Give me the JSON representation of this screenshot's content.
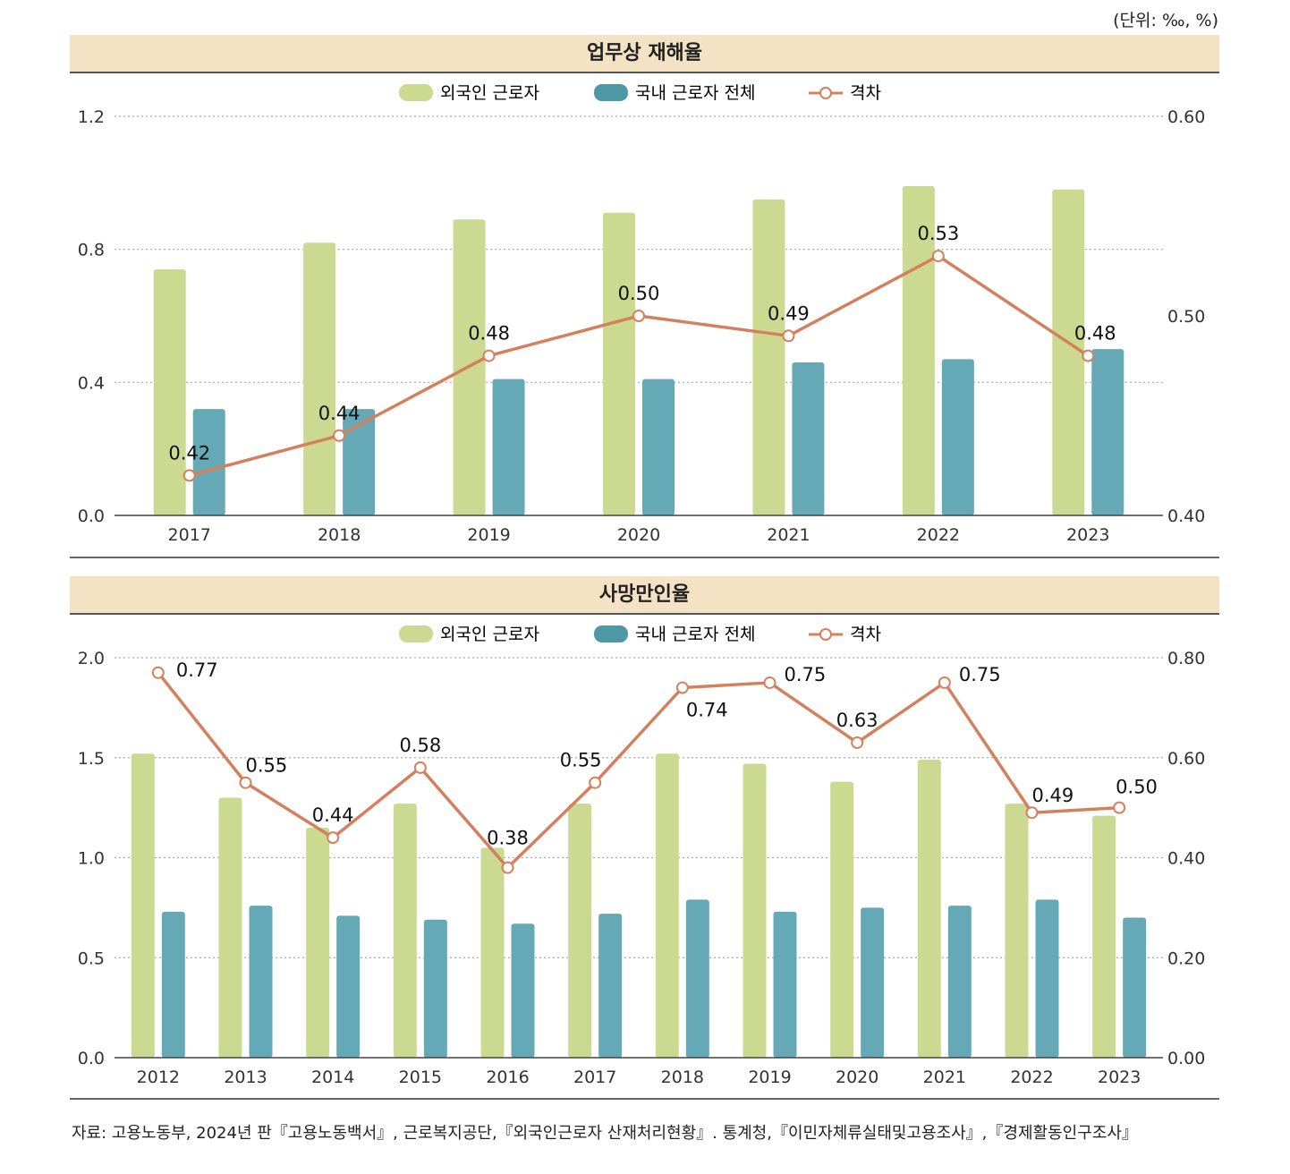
{
  "unit_label": "(단위: ‰, %)",
  "source": "자료: 고용노동부, 2024년 판『고용노동백서』, 근로복지공단,『외국인근로자 산재처리현황』. 통계청,『이민자체류실태및고용조사』,『경제활동인구조사』",
  "colors": {
    "foreign": "#cbd991",
    "domestic": "#65a9b6",
    "gap": "#d4805f",
    "domestic_legend": "#4e97a4"
  },
  "chart_data": [
    {
      "type": "bar",
      "title": "업무상 재해율",
      "legend": [
        "외국인 근로자",
        "국내 근로자 전체",
        "격차"
      ],
      "categories": [
        "2017",
        "2018",
        "2019",
        "2020",
        "2021",
        "2022",
        "2023"
      ],
      "series": [
        {
          "name": "외국인 근로자",
          "values": [
            0.74,
            0.82,
            0.89,
            0.91,
            0.95,
            0.99,
            0.98
          ]
        },
        {
          "name": "국내 근로자 전체",
          "values": [
            0.32,
            0.32,
            0.41,
            0.41,
            0.46,
            0.47,
            0.5
          ]
        },
        {
          "name": "격차",
          "axis": "right",
          "type": "line",
          "values": [
            0.42,
            0.44,
            0.48,
            0.5,
            0.49,
            0.53,
            0.48
          ],
          "labels": [
            "0.42",
            "0.44",
            "0.48",
            "0.50",
            "0.49",
            "0.53",
            "0.48"
          ]
        }
      ],
      "ylim": [
        0,
        1.2
      ],
      "yticks": [
        "0.0",
        "0.4",
        "0.8",
        "1.2"
      ],
      "y2lim": [
        0.4,
        0.6
      ],
      "y2ticks": [
        "0.40",
        "0.50",
        "0.60"
      ],
      "legend_position": "top-center",
      "grid": "dotted horizontal"
    },
    {
      "type": "bar",
      "title": "사망만인율",
      "legend": [
        "외국인 근로자",
        "국내 근로자 전체",
        "격차"
      ],
      "categories": [
        "2012",
        "2013",
        "2014",
        "2015",
        "2016",
        "2017",
        "2018",
        "2019",
        "2020",
        "2021",
        "2022",
        "2023"
      ],
      "series": [
        {
          "name": "외국인 근로자",
          "values": [
            1.52,
            1.3,
            1.15,
            1.27,
            1.05,
            1.27,
            1.52,
            1.47,
            1.38,
            1.49,
            1.27,
            1.21
          ]
        },
        {
          "name": "국내 근로자 전체",
          "values": [
            0.73,
            0.76,
            0.71,
            0.69,
            0.67,
            0.72,
            0.79,
            0.73,
            0.75,
            0.76,
            0.79,
            0.7
          ]
        },
        {
          "name": "격차",
          "axis": "right",
          "type": "line",
          "values": [
            0.77,
            0.55,
            0.44,
            0.58,
            0.38,
            0.55,
            0.74,
            0.75,
            0.63,
            0.75,
            0.49,
            0.5
          ],
          "labels": [
            "0.77",
            "0.55",
            "0.44",
            "0.58",
            "0.38",
            "0.55",
            "0.74",
            "0.75",
            "0.63",
            "0.75",
            "0.49",
            "0.50"
          ]
        }
      ],
      "ylim": [
        0,
        2.0
      ],
      "yticks": [
        "0.0",
        "0.5",
        "1.0",
        "1.5",
        "2.0"
      ],
      "y2lim": [
        0.0,
        0.8
      ],
      "y2ticks": [
        "0.00",
        "0.20",
        "0.40",
        "0.60",
        "0.80"
      ],
      "legend_position": "top-center",
      "grid": "dotted horizontal"
    }
  ]
}
